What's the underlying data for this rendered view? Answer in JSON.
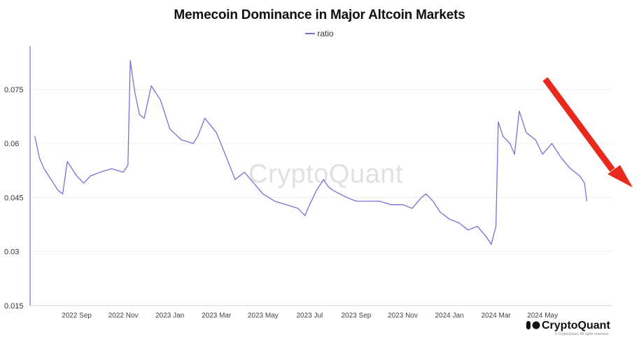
{
  "chart_data": {
    "type": "line",
    "title": "Memecoin Dominance in Major Altcoin Markets",
    "legend": [
      "ratio"
    ],
    "legend_position": "top-center",
    "xlabel": "",
    "ylabel": "",
    "ylim": [
      0.015,
      0.087
    ],
    "y_ticks": [
      "0.075",
      "0.06",
      "0.045",
      "0.03",
      "0.015"
    ],
    "y_tick_values": [
      0.075,
      0.06,
      0.045,
      0.03,
      0.015
    ],
    "x_ticks": [
      "2022 Sep",
      "2022 Nov",
      "2023 Jan",
      "2023 Mar",
      "2023 May",
      "2023 Jul",
      "2023 Sep",
      "2023 Nov",
      "2024 Jan",
      "2024 Mar",
      "2024 May"
    ],
    "x_tick_months": [
      2,
      4,
      6,
      8,
      10,
      12,
      14,
      16,
      18,
      20,
      22
    ],
    "x_unit": "months since 2022-07-01",
    "xlim": [
      0,
      25
    ],
    "series": [
      {
        "name": "ratio",
        "color": "#7b6fd6",
        "x": [
          0.2,
          0.4,
          0.6,
          0.8,
          1.0,
          1.2,
          1.4,
          1.6,
          1.8,
          2.0,
          2.3,
          2.6,
          3.0,
          3.5,
          4.0,
          4.2,
          4.3,
          4.5,
          4.7,
          4.9,
          5.2,
          5.6,
          6.0,
          6.5,
          7.0,
          7.2,
          7.5,
          8.0,
          8.5,
          8.8,
          9.2,
          9.6,
          10.0,
          10.5,
          11.0,
          11.5,
          11.8,
          12.0,
          12.3,
          12.6,
          12.8,
          13.0,
          13.3,
          13.6,
          14.0,
          14.5,
          15.0,
          15.5,
          16.0,
          16.4,
          16.8,
          17.0,
          17.3,
          17.6,
          18.0,
          18.4,
          18.8,
          19.2,
          19.6,
          19.8,
          20.0,
          20.1,
          20.3,
          20.6,
          20.8,
          21.0,
          21.3,
          21.7,
          22.0,
          22.4,
          22.8,
          23.2,
          23.6,
          23.8,
          23.9
        ],
        "values": [
          0.062,
          0.056,
          0.053,
          0.051,
          0.049,
          0.047,
          0.046,
          0.055,
          0.053,
          0.051,
          0.049,
          0.051,
          0.052,
          0.053,
          0.052,
          0.054,
          0.083,
          0.074,
          0.068,
          0.067,
          0.076,
          0.072,
          0.064,
          0.061,
          0.06,
          0.062,
          0.067,
          0.063,
          0.055,
          0.05,
          0.052,
          0.049,
          0.046,
          0.044,
          0.043,
          0.042,
          0.04,
          0.043,
          0.047,
          0.05,
          0.048,
          0.047,
          0.046,
          0.045,
          0.044,
          0.044,
          0.044,
          0.043,
          0.043,
          0.042,
          0.045,
          0.046,
          0.044,
          0.041,
          0.039,
          0.038,
          0.036,
          0.037,
          0.034,
          0.032,
          0.037,
          0.066,
          0.062,
          0.06,
          0.057,
          0.069,
          0.063,
          0.061,
          0.057,
          0.06,
          0.056,
          0.053,
          0.051,
          0.049,
          0.044
        ]
      }
    ]
  },
  "watermark": "CryptoQuant",
  "brand": {
    "name": "CryptoQuant",
    "copyright": "© CryptoQuant. All rights reserved."
  },
  "annotation": {
    "type": "arrow",
    "color": "#e8291c",
    "meaning": "downtrend"
  }
}
